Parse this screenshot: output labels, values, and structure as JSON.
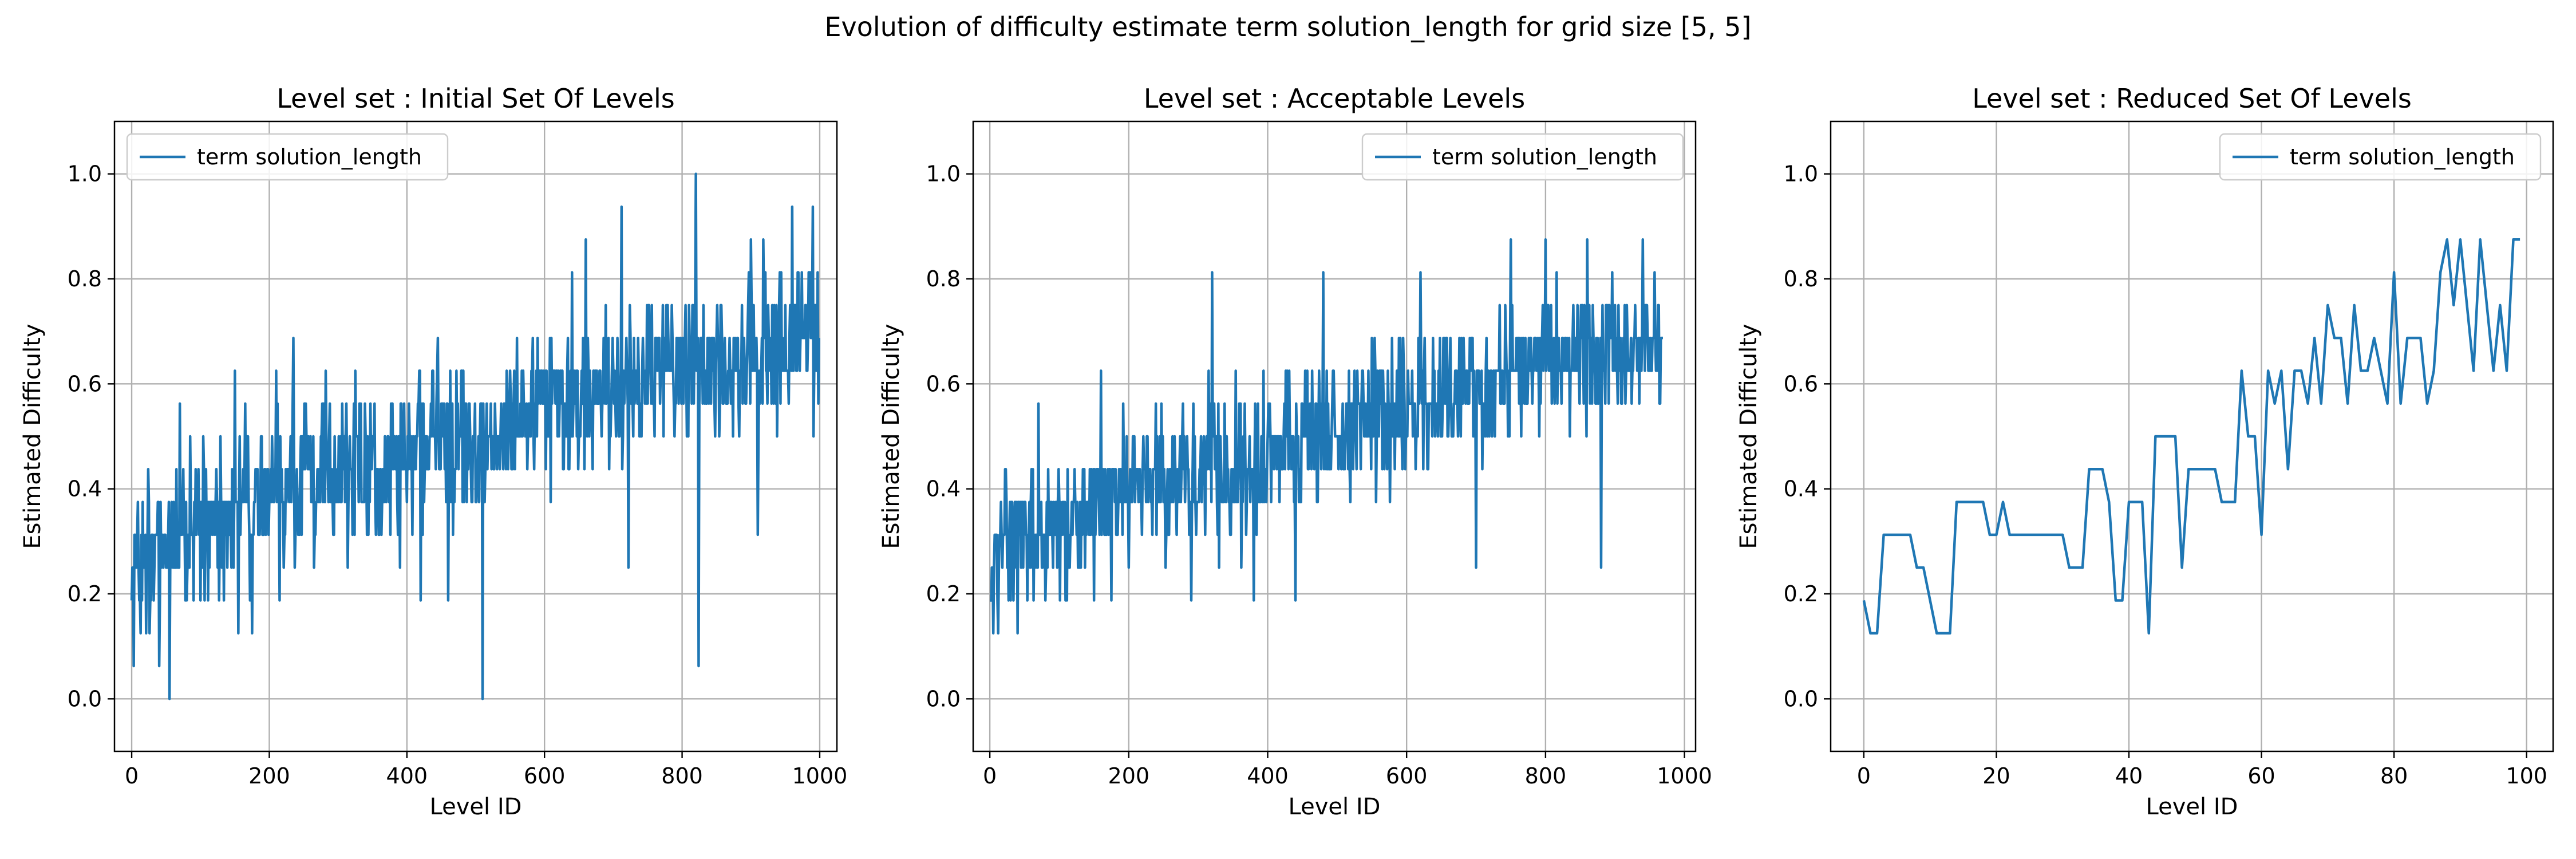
{
  "figure": {
    "suptitle": "Evolution of difficulty estimate term solution_length for grid size [5, 5]"
  },
  "colors": {
    "line": "#1f77b4",
    "grid": "#b0b0b0",
    "axis": "#000000",
    "background": "#ffffff"
  },
  "chart_data": [
    {
      "type": "line",
      "title": "Level set : Initial Set Of Levels",
      "xlabel": "Level ID",
      "ylabel": "Estimated Difficulty",
      "xlim": [
        -25,
        1025
      ],
      "ylim": [
        -0.1,
        1.1
      ],
      "xticks": [
        0,
        200,
        400,
        600,
        800,
        1000
      ],
      "yticks": [
        0.0,
        0.2,
        0.4,
        0.6,
        0.8,
        1.0
      ],
      "grid": true,
      "legend": {
        "label": "term solution_length",
        "position": "top-left"
      },
      "n_points": 1000,
      "trend_anchors": [
        [
          0,
          0.28
        ],
        [
          100,
          0.33
        ],
        [
          200,
          0.4
        ],
        [
          300,
          0.43
        ],
        [
          400,
          0.47
        ],
        [
          500,
          0.52
        ],
        [
          600,
          0.56
        ],
        [
          700,
          0.6
        ],
        [
          800,
          0.64
        ],
        [
          900,
          0.66
        ],
        [
          999,
          0.7
        ]
      ],
      "spread": 0.13,
      "value_min": 0.0,
      "value_max": 1.0,
      "series": [
        {
          "name": "term solution_length",
          "points": [
            [
              0,
              0.1875
            ],
            [
              3,
              0.0625
            ],
            [
              5,
              0.3125
            ],
            [
              8,
              0.3125
            ],
            [
              10,
              0.25
            ],
            [
              13,
              0.125
            ],
            [
              16,
              0.375
            ],
            [
              20,
              0.3125
            ],
            [
              25,
              0.375
            ],
            [
              30,
              0.3125
            ],
            [
              35,
              0.3125
            ],
            [
              40,
              0.0625
            ],
            [
              45,
              0.3125
            ],
            [
              50,
              0.25
            ],
            [
              55,
              0.0
            ],
            [
              60,
              0.25
            ],
            [
              65,
              0.4375
            ],
            [
              70,
              0.5625
            ],
            [
              75,
              0.4375
            ],
            [
              80,
              0.1875
            ],
            [
              85,
              0.5
            ],
            [
              90,
              0.1875
            ],
            [
              95,
              0.375
            ],
            [
              100,
              0.1875
            ],
            [
              110,
              0.375
            ],
            [
              150,
              0.625
            ],
            [
              155,
              0.125
            ],
            [
              165,
              0.5625
            ],
            [
              175,
              0.125
            ],
            [
              210,
              0.625
            ],
            [
              215,
              0.1875
            ],
            [
              235,
              0.6875
            ],
            [
              260,
              0.5
            ],
            [
              265,
              0.25
            ],
            [
              300,
              0.375
            ],
            [
              325,
              0.625
            ],
            [
              333,
              0.5625
            ],
            [
              390,
              0.25
            ],
            [
              420,
              0.1875
            ],
            [
              445,
              0.6875
            ],
            [
              460,
              0.1875
            ],
            [
              510,
              0.0
            ],
            [
              513,
              0.375
            ],
            [
              520,
              0.5
            ],
            [
              545,
              0.625
            ],
            [
              560,
              0.6875
            ],
            [
              600,
              0.5625
            ],
            [
              640,
              0.8125
            ],
            [
              660,
              0.875
            ],
            [
              700,
              0.625
            ],
            [
              712,
              0.9375
            ],
            [
              722,
              0.25
            ],
            [
              820,
              1.0
            ],
            [
              824,
              0.0625
            ],
            [
              900,
              0.875
            ],
            [
              910,
              0.3125
            ],
            [
              960,
              0.9375
            ],
            [
              990,
              0.9375
            ],
            [
              999,
              0.6875
            ]
          ]
        }
      ]
    },
    {
      "type": "line",
      "title": "Level set : Acceptable Levels",
      "xlabel": "Level ID",
      "ylabel": "Estimated Difficulty",
      "xlim": [
        -24,
        1016
      ],
      "ylim": [
        -0.1,
        1.1
      ],
      "xticks": [
        0,
        200,
        400,
        600,
        800,
        1000
      ],
      "yticks": [
        0.0,
        0.2,
        0.4,
        0.6,
        0.8,
        1.0
      ],
      "grid": true,
      "legend": {
        "label": "term solution_length",
        "position": "top-right"
      },
      "n_points": 970,
      "trend_anchors": [
        [
          0,
          0.28
        ],
        [
          100,
          0.33
        ],
        [
          200,
          0.4
        ],
        [
          300,
          0.43
        ],
        [
          400,
          0.47
        ],
        [
          500,
          0.52
        ],
        [
          600,
          0.56
        ],
        [
          700,
          0.6
        ],
        [
          800,
          0.64
        ],
        [
          900,
          0.66
        ],
        [
          969,
          0.7
        ]
      ],
      "spread": 0.12,
      "value_min": 0.125,
      "value_max": 0.875,
      "series": [
        {
          "name": "term solution_length",
          "points": [
            [
              0,
              0.1875
            ],
            [
              5,
              0.125
            ],
            [
              8,
              0.3125
            ],
            [
              12,
              0.125
            ],
            [
              16,
              0.375
            ],
            [
              35,
              0.3125
            ],
            [
              45,
              0.25
            ],
            [
              60,
              0.4375
            ],
            [
              70,
              0.5625
            ],
            [
              80,
              0.1875
            ],
            [
              100,
              0.375
            ],
            [
              140,
              0.375
            ],
            [
              150,
              0.1875
            ],
            [
              160,
              0.625
            ],
            [
              175,
              0.1875
            ],
            [
              290,
              0.1875
            ],
            [
              320,
              0.8125
            ],
            [
              330,
              0.25
            ],
            [
              380,
              0.1875
            ],
            [
              440,
              0.1875
            ],
            [
              480,
              0.8125
            ],
            [
              620,
              0.8125
            ],
            [
              700,
              0.25
            ],
            [
              750,
              0.875
            ],
            [
              800,
              0.875
            ],
            [
              860,
              0.875
            ],
            [
              880,
              0.25
            ],
            [
              940,
              0.875
            ],
            [
              969,
              0.6875
            ]
          ]
        }
      ]
    },
    {
      "type": "line",
      "title": "Level set : Reduced Set Of Levels",
      "xlabel": "Level ID",
      "ylabel": "Estimated Difficulty",
      "xlim": [
        -5,
        104
      ],
      "ylim": [
        -0.1,
        1.1
      ],
      "xticks": [
        0,
        20,
        40,
        60,
        80,
        100
      ],
      "yticks": [
        0.0,
        0.2,
        0.4,
        0.6,
        0.8,
        1.0
      ],
      "grid": true,
      "legend": {
        "label": "term solution_length",
        "position": "top-right"
      },
      "series": [
        {
          "name": "term solution_length",
          "x": [
            0,
            1,
            2,
            3,
            4,
            5,
            6,
            7,
            8,
            9,
            10,
            11,
            12,
            13,
            14,
            15,
            16,
            17,
            18,
            19,
            20,
            21,
            22,
            23,
            24,
            25,
            26,
            27,
            28,
            29,
            30,
            31,
            32,
            33,
            34,
            35,
            36,
            37,
            38,
            39,
            40,
            41,
            42,
            43,
            44,
            45,
            46,
            47,
            48,
            49,
            50,
            51,
            52,
            53,
            54,
            55,
            56,
            57,
            58,
            59,
            60,
            61,
            62,
            63,
            64,
            65,
            66,
            67,
            68,
            69,
            70,
            71,
            72,
            73,
            74,
            75,
            76,
            77,
            78,
            79,
            80,
            81,
            82,
            83,
            84,
            85,
            86,
            87,
            88,
            89,
            90,
            91,
            92,
            93,
            94,
            95,
            96,
            97,
            98,
            99
          ],
          "y": [
            0.1875,
            0.125,
            0.125,
            0.3125,
            0.3125,
            0.3125,
            0.3125,
            0.3125,
            0.25,
            0.25,
            0.1875,
            0.125,
            0.125,
            0.125,
            0.375,
            0.375,
            0.375,
            0.375,
            0.375,
            0.3125,
            0.3125,
            0.375,
            0.3125,
            0.3125,
            0.3125,
            0.3125,
            0.3125,
            0.3125,
            0.3125,
            0.3125,
            0.3125,
            0.25,
            0.25,
            0.25,
            0.4375,
            0.4375,
            0.4375,
            0.375,
            0.1875,
            0.1875,
            0.375,
            0.375,
            0.375,
            0.125,
            0.5,
            0.5,
            0.5,
            0.5,
            0.25,
            0.4375,
            0.4375,
            0.4375,
            0.4375,
            0.4375,
            0.375,
            0.375,
            0.375,
            0.625,
            0.5,
            0.5,
            0.3125,
            0.625,
            0.5625,
            0.625,
            0.4375,
            0.625,
            0.625,
            0.5625,
            0.6875,
            0.5625,
            0.75,
            0.6875,
            0.6875,
            0.5625,
            0.75,
            0.625,
            0.625,
            0.6875,
            0.625,
            0.5625,
            0.8125,
            0.5625,
            0.6875,
            0.6875,
            0.6875,
            0.5625,
            0.625,
            0.8125,
            0.875,
            0.75,
            0.875,
            0.75,
            0.625,
            0.875,
            0.75,
            0.625,
            0.75,
            0.625,
            0.875,
            0.875
          ]
        }
      ]
    }
  ]
}
